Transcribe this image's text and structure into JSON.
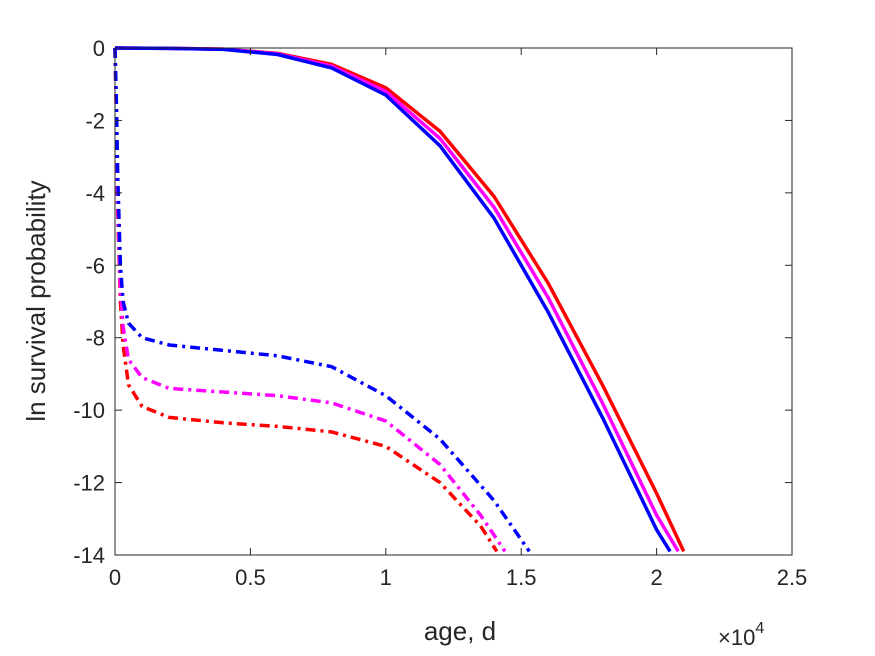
{
  "chart_data": {
    "type": "line",
    "title": "",
    "xlabel": "age, d",
    "ylabel": "ln survival probability",
    "x_exponent_label": "×10",
    "x_exponent_power": "4",
    "xlim": [
      0,
      25000
    ],
    "ylim": [
      -14,
      0
    ],
    "x_ticks": [
      0,
      5000,
      10000,
      15000,
      20000,
      25000
    ],
    "x_tick_labels": [
      "0",
      "0.5",
      "1",
      "1.5",
      "2",
      "2.5"
    ],
    "y_ticks": [
      0,
      -2,
      -4,
      -6,
      -8,
      -10,
      -12,
      -14
    ],
    "y_tick_labels": [
      "0",
      "-2",
      "-4",
      "-6",
      "-8",
      "-10",
      "-12",
      "-14"
    ],
    "grid": false,
    "legend": "none",
    "series": [
      {
        "color": "#ff0000",
        "style": "solid",
        "points": [
          [
            0,
            0
          ],
          [
            2000,
            -0.01
          ],
          [
            4000,
            -0.03
          ],
          [
            6000,
            -0.15
          ],
          [
            8000,
            -0.45
          ],
          [
            10000,
            -1.1
          ],
          [
            12000,
            -2.3
          ],
          [
            14000,
            -4.1
          ],
          [
            16000,
            -6.5
          ],
          [
            18000,
            -9.3
          ],
          [
            20000,
            -12.3
          ],
          [
            21000,
            -13.9
          ]
        ]
      },
      {
        "color": "#ff00ff",
        "style": "solid",
        "points": [
          [
            0,
            0
          ],
          [
            2000,
            -0.01
          ],
          [
            4000,
            -0.03
          ],
          [
            6000,
            -0.16
          ],
          [
            8000,
            -0.5
          ],
          [
            10000,
            -1.2
          ],
          [
            12000,
            -2.5
          ],
          [
            14000,
            -4.4
          ],
          [
            16000,
            -6.9
          ],
          [
            18000,
            -9.8
          ],
          [
            20000,
            -12.9
          ],
          [
            20800,
            -13.9
          ]
        ]
      },
      {
        "color": "#0000ff",
        "style": "solid",
        "points": [
          [
            0,
            0
          ],
          [
            2000,
            -0.01
          ],
          [
            4000,
            -0.04
          ],
          [
            6000,
            -0.18
          ],
          [
            8000,
            -0.55
          ],
          [
            10000,
            -1.3
          ],
          [
            12000,
            -2.7
          ],
          [
            14000,
            -4.7
          ],
          [
            16000,
            -7.3
          ],
          [
            18000,
            -10.2
          ],
          [
            20000,
            -13.3
          ],
          [
            20500,
            -13.9
          ]
        ]
      },
      {
        "color": "#ff0000",
        "style": "dashdot",
        "points": [
          [
            0,
            0
          ],
          [
            50,
            -2
          ],
          [
            100,
            -4.5
          ],
          [
            200,
            -7
          ],
          [
            300,
            -8.2
          ],
          [
            500,
            -9.3
          ],
          [
            1000,
            -9.9
          ],
          [
            2000,
            -10.2
          ],
          [
            4000,
            -10.35
          ],
          [
            6000,
            -10.45
          ],
          [
            8000,
            -10.6
          ],
          [
            10000,
            -11.0
          ],
          [
            12000,
            -12.0
          ],
          [
            13500,
            -13.2
          ],
          [
            14100,
            -13.9
          ]
        ]
      },
      {
        "color": "#ff00ff",
        "style": "dashdot",
        "points": [
          [
            0,
            0
          ],
          [
            50,
            -1.8
          ],
          [
            100,
            -4.2
          ],
          [
            200,
            -6.6
          ],
          [
            300,
            -7.7
          ],
          [
            500,
            -8.6
          ],
          [
            1000,
            -9.1
          ],
          [
            2000,
            -9.4
          ],
          [
            4000,
            -9.5
          ],
          [
            6000,
            -9.6
          ],
          [
            8000,
            -9.8
          ],
          [
            10000,
            -10.3
          ],
          [
            12000,
            -11.5
          ],
          [
            13500,
            -12.9
          ],
          [
            14400,
            -13.9
          ]
        ]
      },
      {
        "color": "#0000ff",
        "style": "dashdot",
        "points": [
          [
            0,
            0
          ],
          [
            50,
            -1.5
          ],
          [
            100,
            -3.5
          ],
          [
            200,
            -6.0
          ],
          [
            300,
            -7.0
          ],
          [
            500,
            -7.6
          ],
          [
            1000,
            -8.0
          ],
          [
            2000,
            -8.2
          ],
          [
            4000,
            -8.35
          ],
          [
            6000,
            -8.5
          ],
          [
            8000,
            -8.8
          ],
          [
            10000,
            -9.6
          ],
          [
            12000,
            -10.8
          ],
          [
            14000,
            -12.5
          ],
          [
            15300,
            -13.9
          ]
        ]
      }
    ]
  }
}
